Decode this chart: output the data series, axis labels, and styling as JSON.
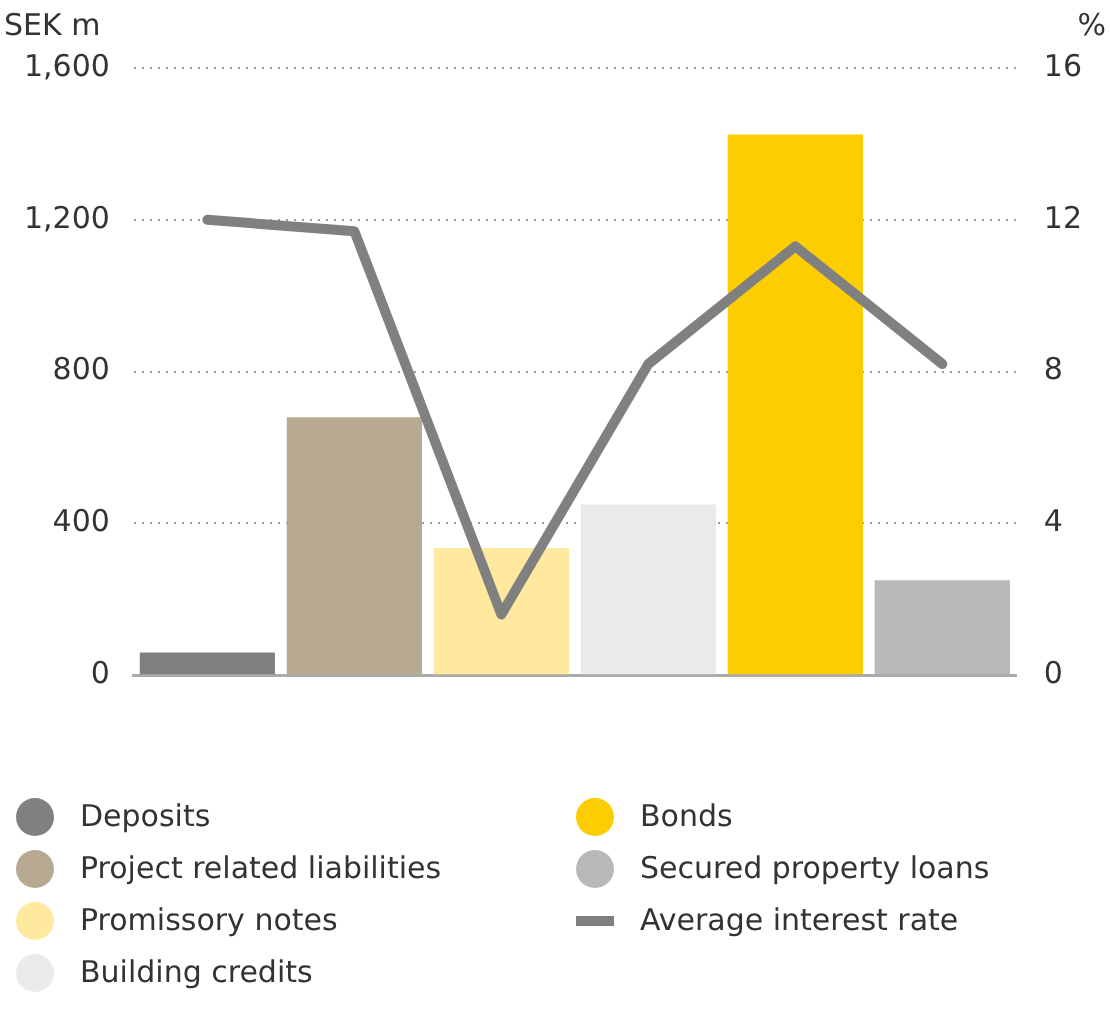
{
  "chart_data": {
    "type": "bar",
    "ylabel": "SEK m",
    "y2label": "%",
    "categories": [
      null,
      null,
      null,
      null,
      null,
      null
    ],
    "series": [
      {
        "name": "Deposits",
        "color": "#808080",
        "values": [
          60,
          null,
          null,
          null,
          null,
          null
        ]
      },
      {
        "name": "Project related liabilities",
        "color": "#b8a993",
        "values": [
          null,
          680,
          null,
          null,
          null,
          null
        ]
      },
      {
        "name": "Promissory notes",
        "color": "#fee99f",
        "values": [
          null,
          null,
          335,
          null,
          null,
          null
        ]
      },
      {
        "name": "Building credits",
        "color": "#e9ebea",
        "values": [
          null,
          null,
          null,
          450,
          null,
          null
        ]
      },
      {
        "name": "Bonds",
        "color": "#fccd00",
        "values": [
          null,
          null,
          null,
          null,
          1425,
          null
        ]
      },
      {
        "name": "Secured property loans",
        "color": "#b8b8b8",
        "values": [
          null,
          null,
          null,
          null,
          null,
          250
        ]
      },
      {
        "name": "Average interest rate",
        "type": "line",
        "axis": "y2",
        "color": "#808080",
        "values": [
          12.0,
          11.7,
          1.6,
          8.2,
          11.3,
          8.2
        ]
      }
    ],
    "ylim": [
      0,
      1600
    ],
    "yticks": [
      0,
      {
        "value": 400,
        "label": "400"
      },
      {
        "value": 800,
        "label": "800"
      },
      {
        "value": 1200,
        "label": "1,200"
      },
      {
        "value": 1600,
        "label": "1,600"
      }
    ],
    "y2lim": [
      0,
      16
    ],
    "y2ticks": [
      0,
      4,
      8,
      12,
      16
    ],
    "grid": "y",
    "legend": "bottom",
    "marker": "none"
  }
}
